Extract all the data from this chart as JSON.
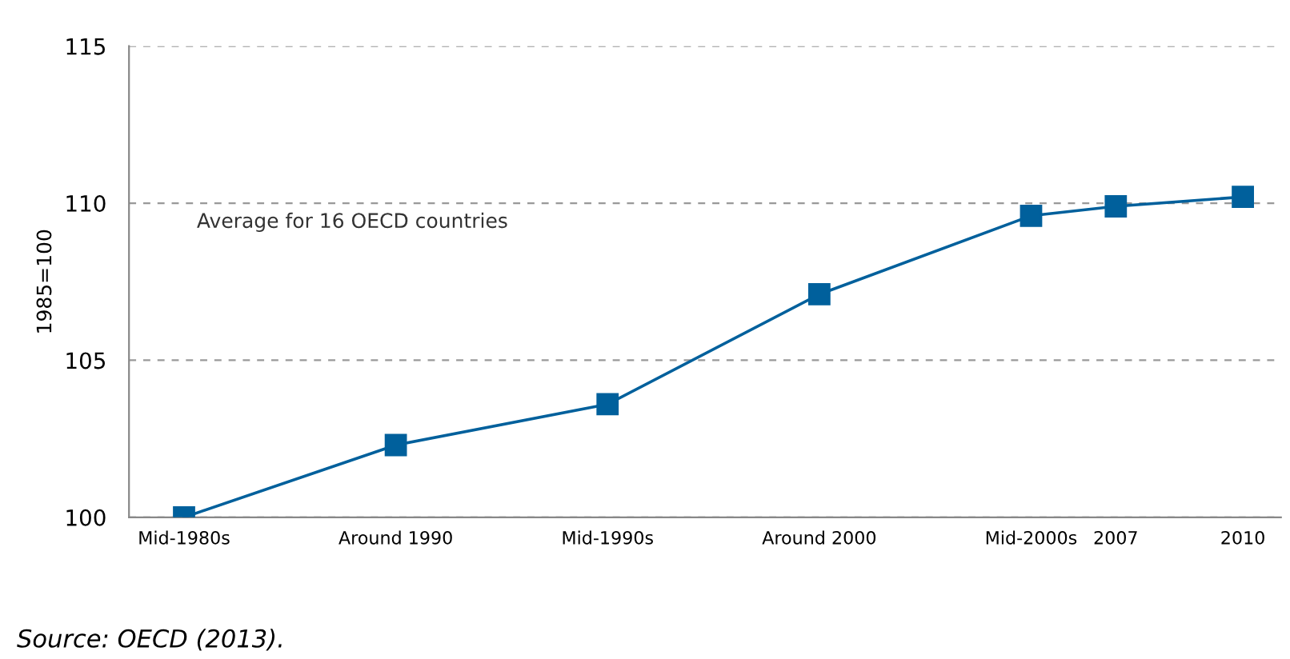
{
  "chart_data": {
    "type": "line",
    "ylabel": "1985=100",
    "x": [
      1985,
      1990,
      1995,
      2000,
      2005,
      2007,
      2010
    ],
    "series": [
      {
        "name": "Average for 16 OECD countries",
        "color": "#00609c",
        "values": [
          100,
          102.3,
          103.6,
          107.1,
          109.6,
          109.9,
          110.2
        ]
      }
    ],
    "xlim": [
      1983.7,
      2010.9
    ],
    "xticks": [
      {
        "value": 1985,
        "label": "Mid-1980s"
      },
      {
        "value": 1990,
        "label": "Around 1990"
      },
      {
        "value": 1995,
        "label": "Mid-1990s"
      },
      {
        "value": 2000,
        "label": "Around 2000"
      },
      {
        "value": 2005,
        "label": "Mid-2000s"
      },
      {
        "value": 2007,
        "label": "2007"
      },
      {
        "value": 2010,
        "label": "2010"
      }
    ],
    "ylim": [
      100,
      115
    ],
    "yticks": [
      100,
      105,
      110,
      115
    ],
    "grid": "y",
    "marker": "square",
    "line_style": "solid",
    "annotations": [
      "Source: OECD (2013)."
    ]
  }
}
